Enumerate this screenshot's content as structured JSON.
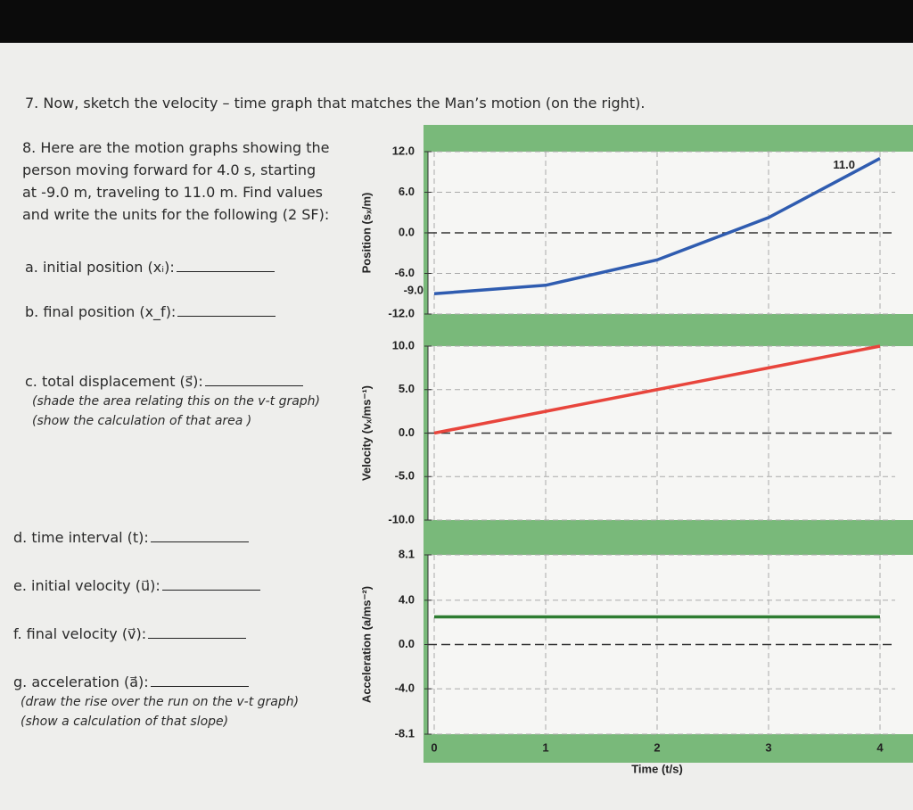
{
  "questions": {
    "q7": "7. Now, sketch the velocity – time graph that matches the Man’s motion (on the right).",
    "q8": "8. Here are the motion graphs showing the person moving forward for 4.0 s, starting at -9.0 m, traveling to 11.0 m. Find values and write the units for the following (2 SF):",
    "items": [
      {
        "label": "a. initial position (xᵢ):"
      },
      {
        "label": "b. final position (x_f):"
      },
      {
        "label": "c. total displacement (s⃗):",
        "notes": [
          "(shade the area relating this on the v-t graph)",
          "(show the calculation of that area )"
        ]
      },
      {
        "label": "d. time interval (t):"
      },
      {
        "label": "e. initial velocity (u⃗):"
      },
      {
        "label": "f. final velocity (v⃗):"
      },
      {
        "label": "g. acceleration (a⃗):",
        "notes": [
          "(draw the rise over the run on the v-t graph)",
          "(show a calculation of that slope)"
        ]
      }
    ]
  },
  "chart_data": [
    {
      "type": "line",
      "y_label": "Position (sₓ/m)",
      "x": [
        0,
        1,
        2,
        3,
        4
      ],
      "xlim": [
        0,
        4
      ],
      "ylim": [
        -12,
        12
      ],
      "yticks": [
        {
          "value": -12,
          "label": "-12.0"
        },
        {
          "value": -6,
          "label": "-6.0"
        },
        {
          "value": 0,
          "label": "0.0"
        },
        {
          "value": 6,
          "label": "6.0"
        },
        {
          "value": 12,
          "label": "12.0"
        }
      ],
      "grid": true,
      "series": [
        {
          "color": "#2f5cb0",
          "values": [
            -9,
            -7.75,
            -4,
            2.25,
            11
          ],
          "value_labels": [
            "-9.0",
            null,
            null,
            null,
            "11.0"
          ]
        }
      ]
    },
    {
      "type": "line",
      "y_label": "Velocity (vₓ/ms⁻¹)",
      "x": [
        0,
        1,
        2,
        3,
        4
      ],
      "xlim": [
        0,
        4
      ],
      "ylim": [
        -10,
        10
      ],
      "yticks": [
        {
          "value": -10,
          "label": "-10.0"
        },
        {
          "value": -5,
          "label": "-5.0"
        },
        {
          "value": 0,
          "label": "0.0"
        },
        {
          "value": 5,
          "label": "5.0"
        },
        {
          "value": 10,
          "label": "10.0"
        }
      ],
      "grid": true,
      "series": [
        {
          "color": "#e8453c",
          "values": [
            0,
            2.5,
            5,
            7.5,
            10
          ]
        }
      ]
    },
    {
      "type": "line",
      "y_label": "Acceleration (a/ms⁻²)",
      "x_label": "Time (t/s)",
      "x": [
        0,
        1,
        2,
        3,
        4
      ],
      "xlim": [
        0,
        4
      ],
      "xticks": [
        0,
        1,
        2,
        3,
        4
      ],
      "ylim": [
        -8.1,
        8.1
      ],
      "yticks": [
        {
          "value": -8.1,
          "label": "-8.1"
        },
        {
          "value": -4,
          "label": "-4.0"
        },
        {
          "value": 0,
          "label": "0.0"
        },
        {
          "value": 4,
          "label": "4.0"
        },
        {
          "value": 8.1,
          "label": "8.1"
        }
      ],
      "grid": true,
      "series": [
        {
          "color": "#2e7d32",
          "values": [
            2.5,
            2.5,
            2.5,
            2.5,
            2.5
          ]
        }
      ]
    }
  ]
}
